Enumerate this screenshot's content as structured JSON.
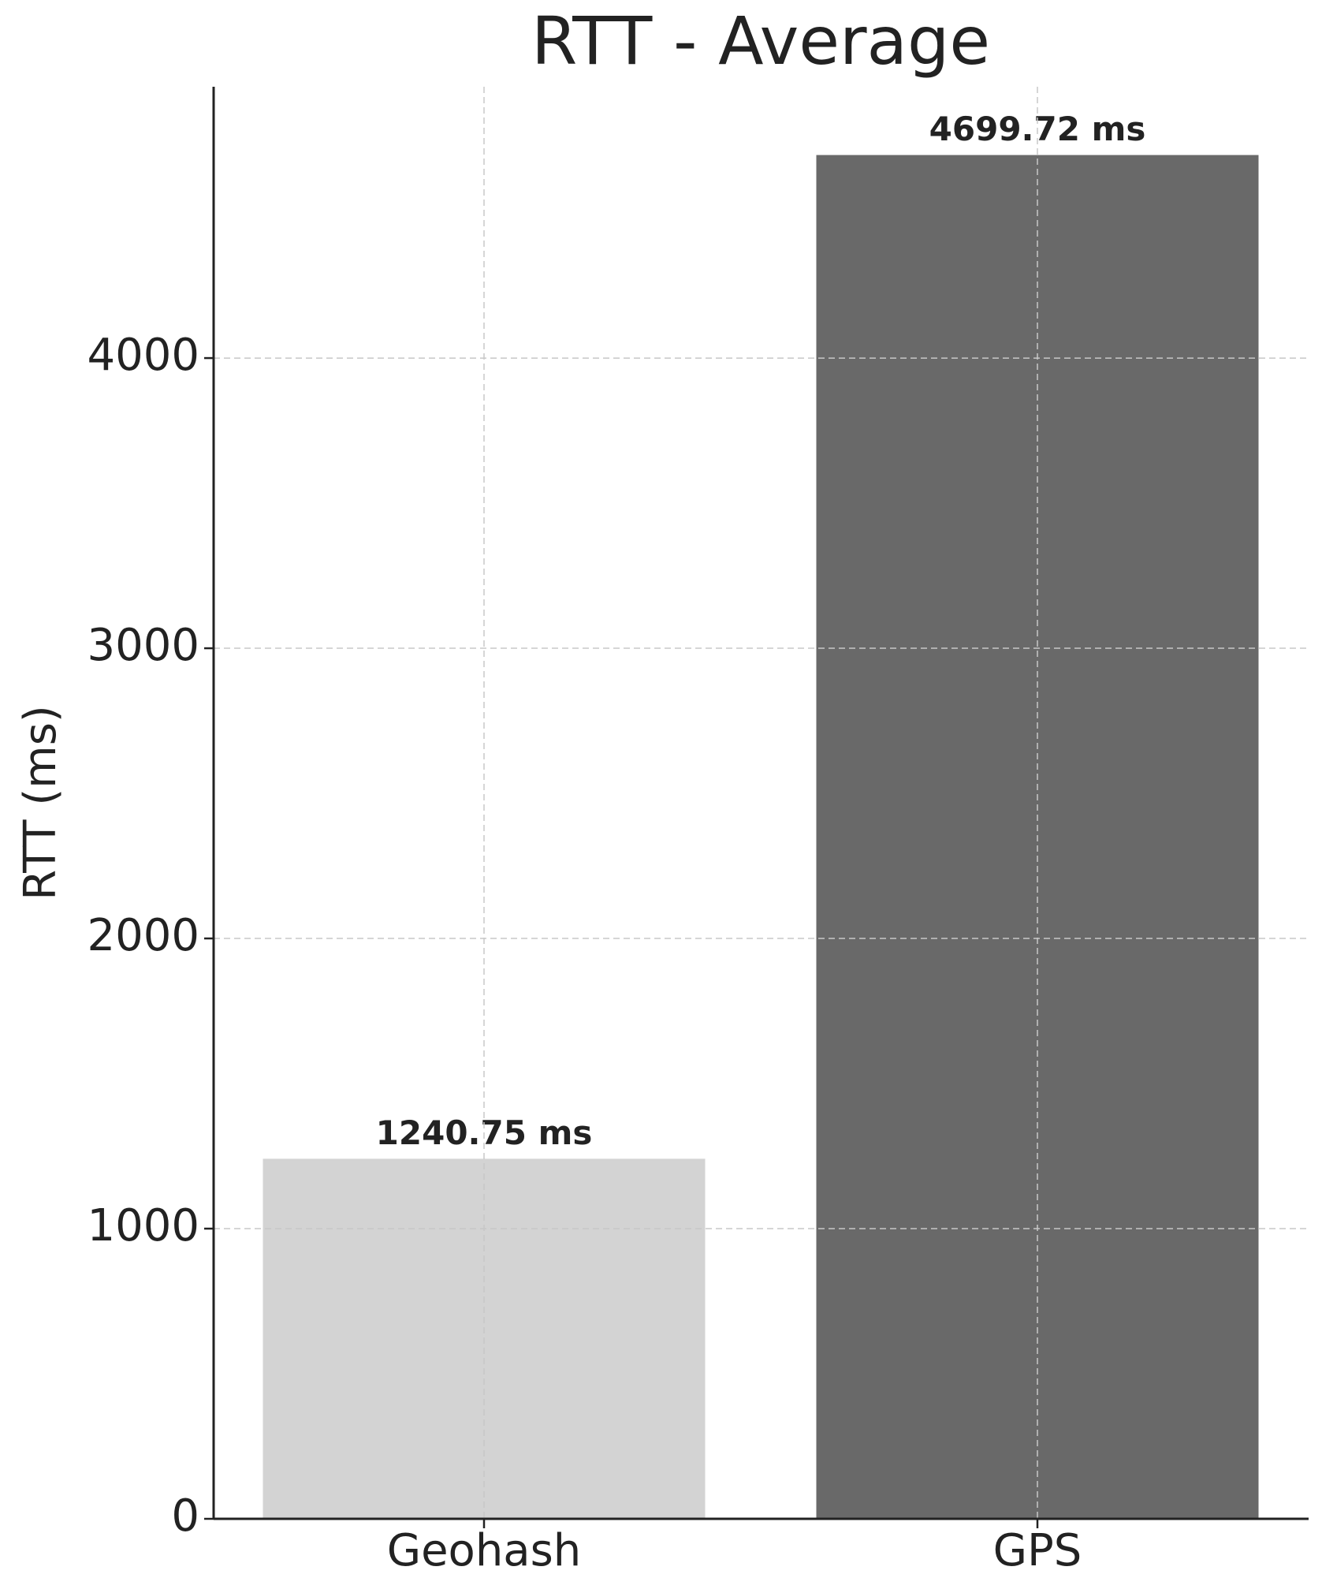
{
  "chart_data": {
    "type": "bar",
    "title": "RTT - Average",
    "y_label": "RTT (ms)",
    "categories": [
      "Geohash",
      "GPS"
    ],
    "values": [
      1240.75,
      4699.72
    ],
    "value_labels": [
      "1240.75 ms",
      "4699.72 ms"
    ],
    "colors": [
      "#d3d3d3",
      "#696969"
    ],
    "ylim": [
      0,
      4935
    ],
    "yticks": [
      0,
      1000,
      2000,
      3000,
      4000
    ],
    "grid": true
  }
}
